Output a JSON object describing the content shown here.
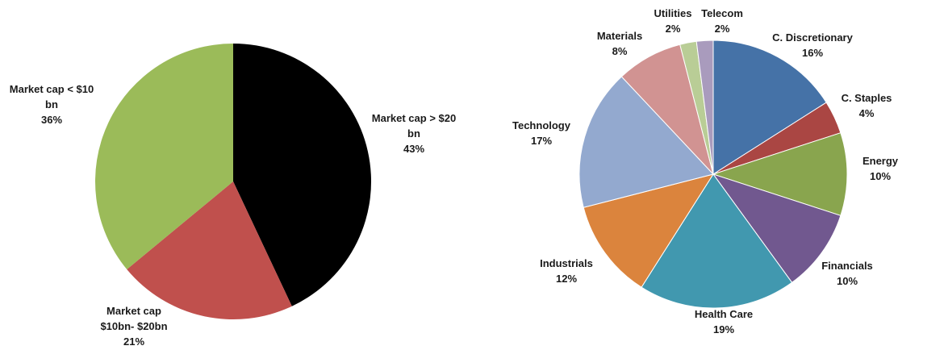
{
  "chart_data": [
    {
      "type": "pie",
      "title": "",
      "slices": [
        {
          "label_lines": [
            "Market cap > $20",
            "bn"
          ],
          "percent_label": "43%",
          "value": 43,
          "color": "#000000"
        },
        {
          "label_lines": [
            "Market cap",
            "$10bn- $20bn"
          ],
          "percent_label": "21%",
          "value": 21,
          "color": "#c0504d"
        },
        {
          "label_lines": [
            "Market cap < $10",
            "bn"
          ],
          "percent_label": "36%",
          "value": 36,
          "color": "#9bbb59"
        }
      ]
    },
    {
      "type": "pie",
      "title": "",
      "slices": [
        {
          "label_lines": [
            "C. Discretionary"
          ],
          "percent_label": "16%",
          "value": 16,
          "color": "#4572a7"
        },
        {
          "label_lines": [
            "C. Staples"
          ],
          "percent_label": "4%",
          "value": 4,
          "color": "#aa4643"
        },
        {
          "label_lines": [
            "Energy"
          ],
          "percent_label": "10%",
          "value": 10,
          "color": "#89a54e"
        },
        {
          "label_lines": [
            "Financials"
          ],
          "percent_label": "10%",
          "value": 10,
          "color": "#71588f"
        },
        {
          "label_lines": [
            "Health Care"
          ],
          "percent_label": "19%",
          "value": 19,
          "color": "#4198af"
        },
        {
          "label_lines": [
            "Industrials"
          ],
          "percent_label": "12%",
          "value": 12,
          "color": "#db843d"
        },
        {
          "label_lines": [
            "Technology"
          ],
          "percent_label": "17%",
          "value": 17,
          "color": "#93a9cf"
        },
        {
          "label_lines": [
            "Materials"
          ],
          "percent_label": "8%",
          "value": 8,
          "color": "#d19392"
        },
        {
          "label_lines": [
            "Utilities"
          ],
          "percent_label": "2%",
          "value": 2,
          "color": "#b9cd96"
        },
        {
          "label_lines": [
            "Telecom"
          ],
          "percent_label": "2%",
          "value": 2,
          "color": "#a99bbd"
        }
      ]
    }
  ]
}
